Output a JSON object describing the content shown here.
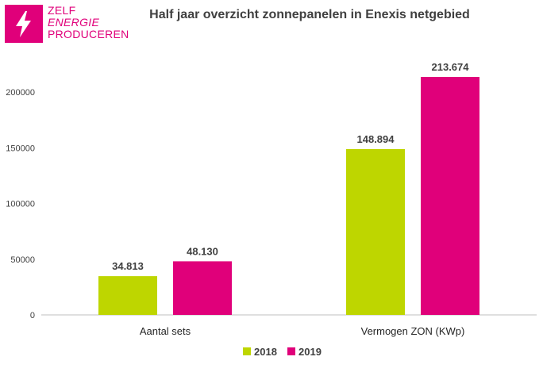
{
  "logo": {
    "line1": "ZELF",
    "line2": "ENERGIE",
    "line3": "PRODUCEREN",
    "icon": "lightning-bolt-icon",
    "color": "#E0007A"
  },
  "chart_data": {
    "type": "bar",
    "title": "Half jaar overzicht zonnepanelen in Enexis netgebied",
    "categories": [
      "Aantal sets",
      "Vermogen ZON (KWp)"
    ],
    "series": [
      {
        "name": "2018",
        "values": [
          34813,
          148894
        ],
        "labels": [
          "34.813",
          "148.894"
        ],
        "color": "#BED600"
      },
      {
        "name": "2019",
        "values": [
          48130,
          213674
        ],
        "labels": [
          "48.130",
          "213.674"
        ],
        "color": "#E0007A"
      }
    ],
    "yticks": [
      0,
      50000,
      100000,
      150000,
      200000
    ],
    "ylim": [
      0,
      250000
    ],
    "grid": false,
    "legend": "bottom"
  }
}
